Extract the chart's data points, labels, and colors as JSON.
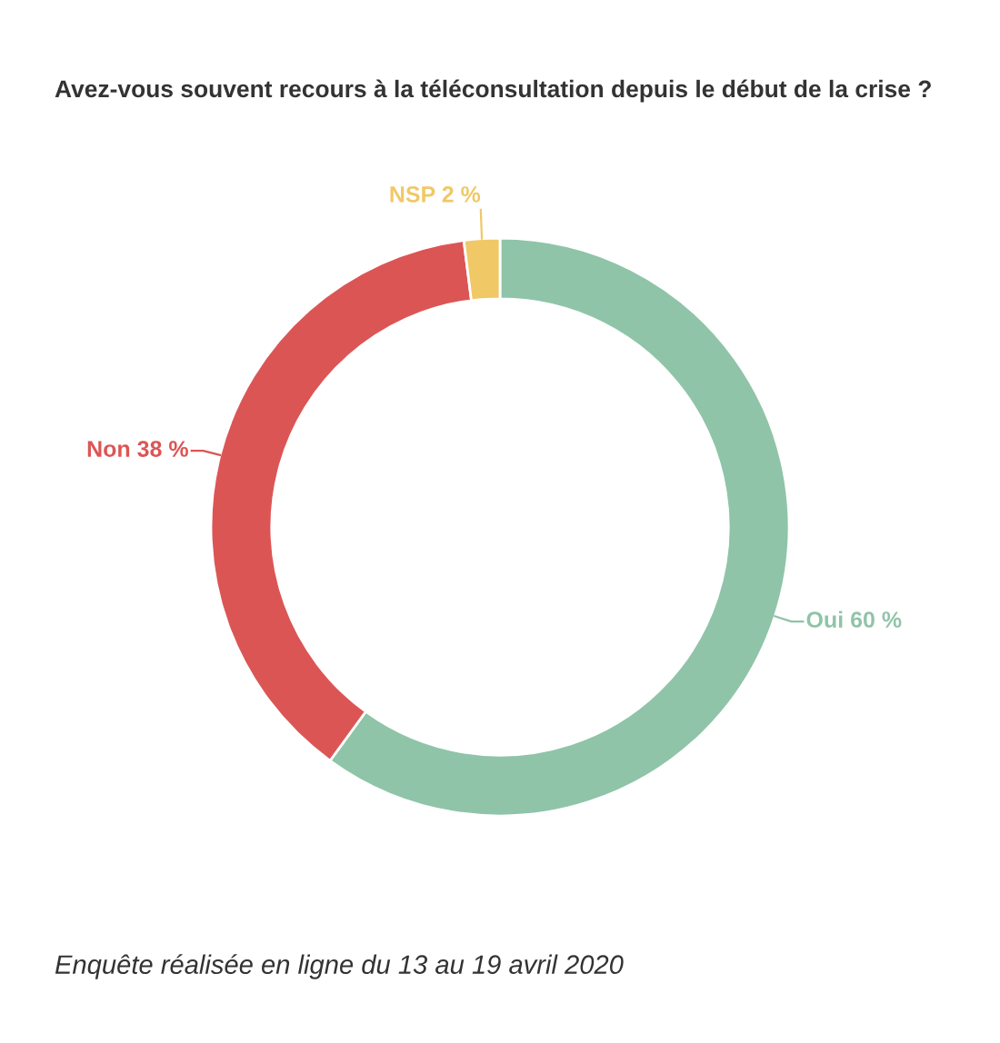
{
  "chart_data": {
    "type": "donut",
    "title": "Avez-vous souvent recours à la téléconsultation depuis le début de la crise ?",
    "categories": [
      "Oui",
      "Non",
      "NSP"
    ],
    "values": [
      60,
      38,
      2
    ],
    "colors": [
      "#8fc4a8",
      "#dc5555",
      "#f0c866"
    ],
    "value_labels": [
      "60 %",
      "38 %",
      "2 %"
    ],
    "annotations": [
      "Enquête réalisée en ligne du 13 au 19 avril 2020"
    ]
  }
}
